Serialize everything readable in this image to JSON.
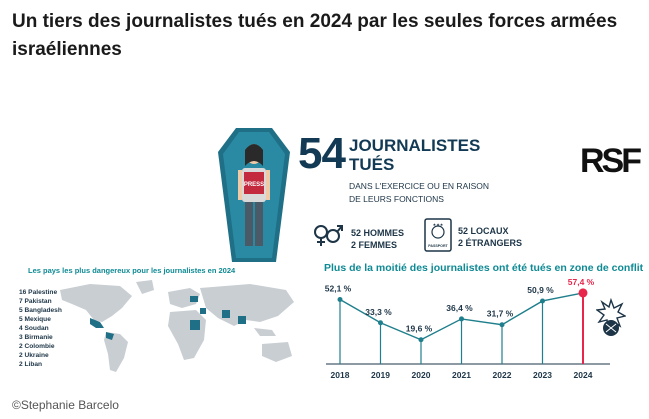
{
  "headline": "Un tiers des journalistes tués en 2024 par les seules forces armées israéliennes",
  "credit": "©Stephanie Barcelo",
  "summary": {
    "total": "54",
    "label_line1": "JOURNALISTES",
    "label_line2": "TUÉS",
    "sub_line1": "DANS L'EXERCICE OU EN RAISON",
    "sub_line2": "DE LEURS FONCTIONS",
    "press_label": "PRESS",
    "men": "52 HOMMES",
    "women": "2 FEMMES",
    "passport_label": "PASSPORT",
    "locals": "52 LOCAUX",
    "foreigners": "2 ÉTRANGERS",
    "logo": "RSF"
  },
  "map": {
    "title": "Les pays les plus dangereux pour les journalistes en 2024",
    "countries": [
      "16 Palestine",
      "7 Pakistan",
      "5 Bangladesh",
      "5 Mexique",
      "4 Soudan",
      "3 Birmanie",
      "2 Colombie",
      "2 Ukraine",
      "2 Liban"
    ]
  },
  "chart_data": {
    "type": "line",
    "title": "Plus de la moitié des journalistes ont été tués en zone de conflit",
    "x": [
      "2018",
      "2019",
      "2020",
      "2021",
      "2022",
      "2023",
      "2024"
    ],
    "values": [
      52.1,
      33.3,
      19.6,
      36.4,
      31.7,
      50.9,
      57.4
    ],
    "labels": [
      "52,1 %",
      "33,3 %",
      "19,6 %",
      "36,4 %",
      "31,7 %",
      "50,9 %",
      "57,4 %"
    ],
    "highlight_index": 6,
    "colors": {
      "line": "#1f7f8c",
      "highlight": "#e8264b",
      "text": "#1d3547"
    }
  }
}
